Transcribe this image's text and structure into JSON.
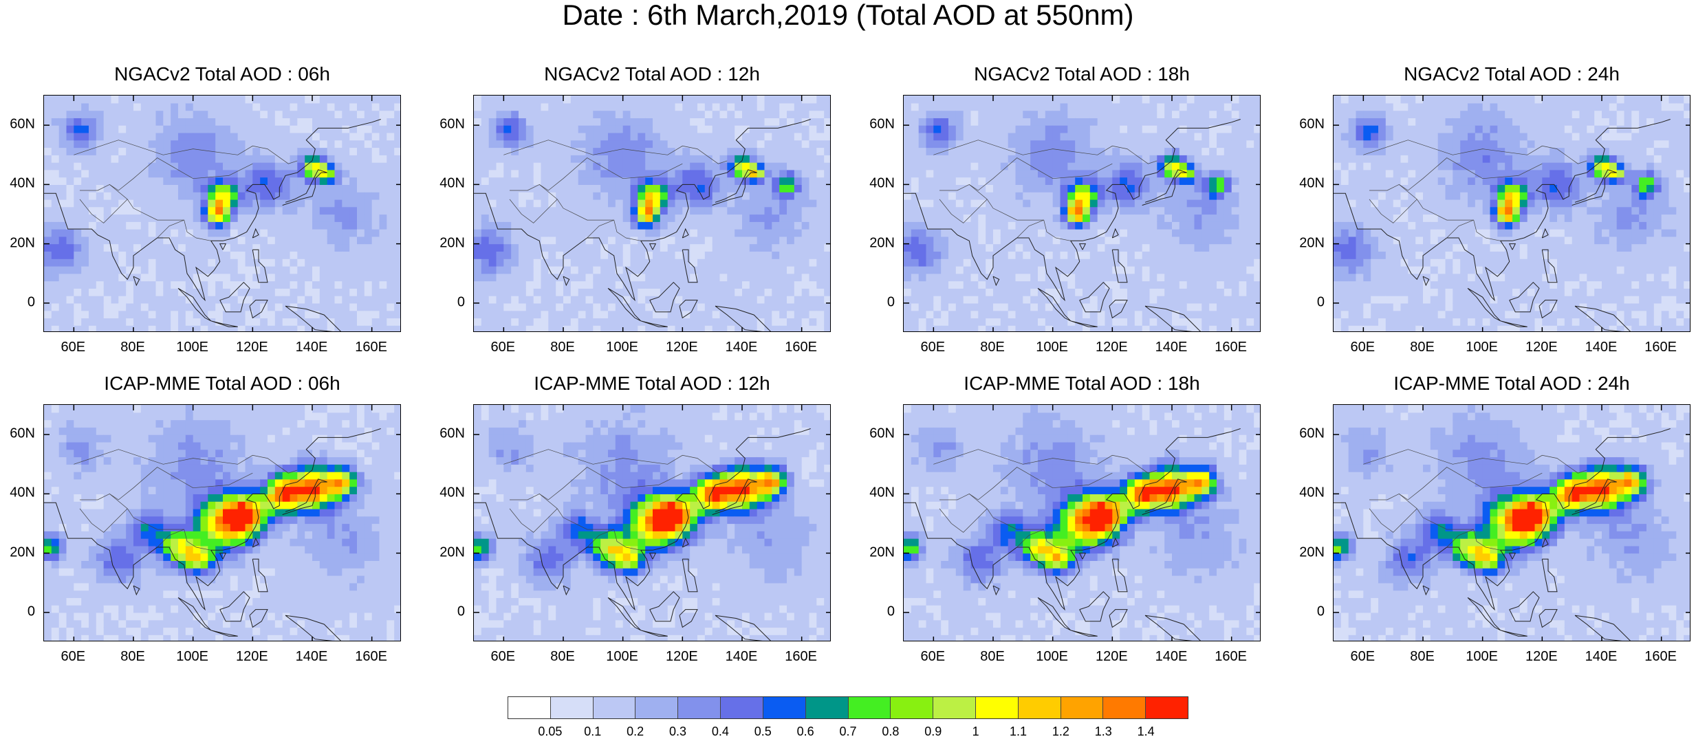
{
  "title": "Date : 6th March,2019 (Total AOD at 550nm)",
  "lat_ticks": [
    "60N",
    "40N",
    "20N",
    "0"
  ],
  "lon_ticks": [
    "60E",
    "80E",
    "100E",
    "120E",
    "140E",
    "160E"
  ],
  "panels": [
    {
      "title": "NGACv2 Total AOD : 06h",
      "model": "NGACv2",
      "hour": "06h"
    },
    {
      "title": "NGACv2 Total AOD : 12h",
      "model": "NGACv2",
      "hour": "12h"
    },
    {
      "title": "NGACv2 Total AOD : 18h",
      "model": "NGACv2",
      "hour": "18h"
    },
    {
      "title": "NGACv2 Total AOD : 24h",
      "model": "NGACv2",
      "hour": "24h"
    },
    {
      "title": "ICAP-MME Total AOD : 06h",
      "model": "ICAP-MME",
      "hour": "06h"
    },
    {
      "title": "ICAP-MME Total AOD : 12h",
      "model": "ICAP-MME",
      "hour": "12h"
    },
    {
      "title": "ICAP-MME Total AOD : 18h",
      "model": "ICAP-MME",
      "hour": "18h"
    },
    {
      "title": "ICAP-MME Total AOD : 24h",
      "model": "ICAP-MME",
      "hour": "24h"
    }
  ],
  "colorbar": {
    "labels": [
      "0.05",
      "0.1",
      "0.2",
      "0.3",
      "0.4",
      "0.5",
      "0.6",
      "0.7",
      "0.8",
      "0.9",
      "1",
      "1.1",
      "1.2",
      "1.3",
      "1.4"
    ],
    "colors": [
      "#ffffff",
      "#d6def8",
      "#bcc8f4",
      "#9fb0f0",
      "#8291ec",
      "#6670e8",
      "#0a5cf2",
      "#009688",
      "#44ee22",
      "#88f011",
      "#bcf044",
      "#ffff00",
      "#ffcc00",
      "#ffa300",
      "#ff7a00",
      "#ff2200"
    ]
  }
}
